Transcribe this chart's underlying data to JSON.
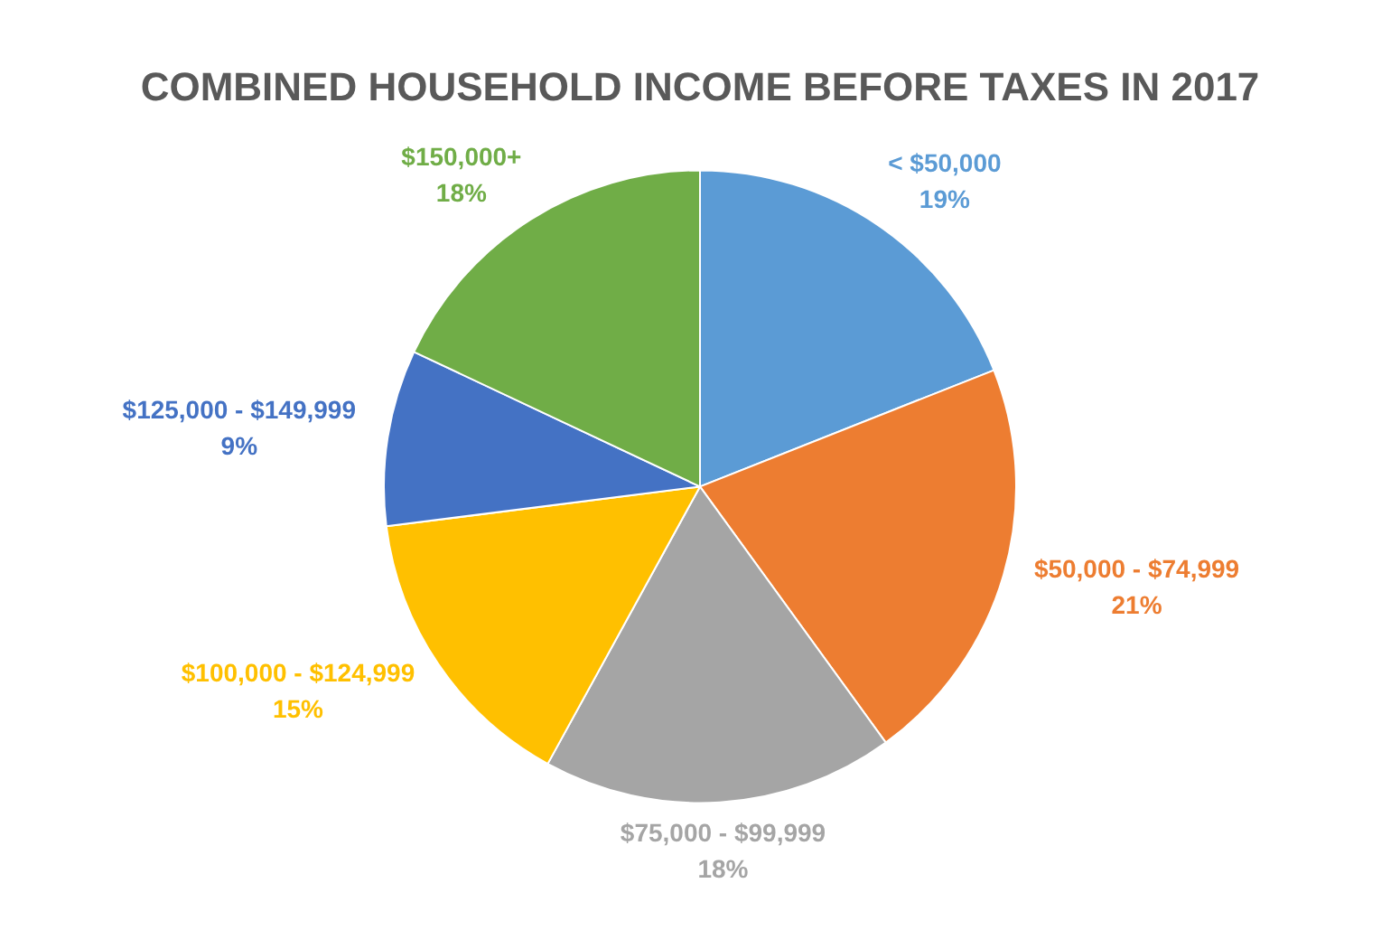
{
  "chart_data": {
    "type": "pie",
    "title": "COMBINED HOUSEHOLD INCOME BEFORE TAXES IN 2017",
    "categories": [
      "< $50,000",
      "$50,000 - $74,999",
      "$75,000 - $99,999",
      "$100,000 - $124,999",
      "$125,000 - $149,999",
      "$150,000+"
    ],
    "values": [
      19,
      21,
      18,
      15,
      9,
      18
    ],
    "colors": [
      "#5b9bd5",
      "#ed7d31",
      "#a5a5a5",
      "#ffc000",
      "#4472c4",
      "#70ad47"
    ],
    "value_labels": [
      "19%",
      "21%",
      "18%",
      "15%",
      "9%",
      "18%"
    ],
    "legend": false
  }
}
